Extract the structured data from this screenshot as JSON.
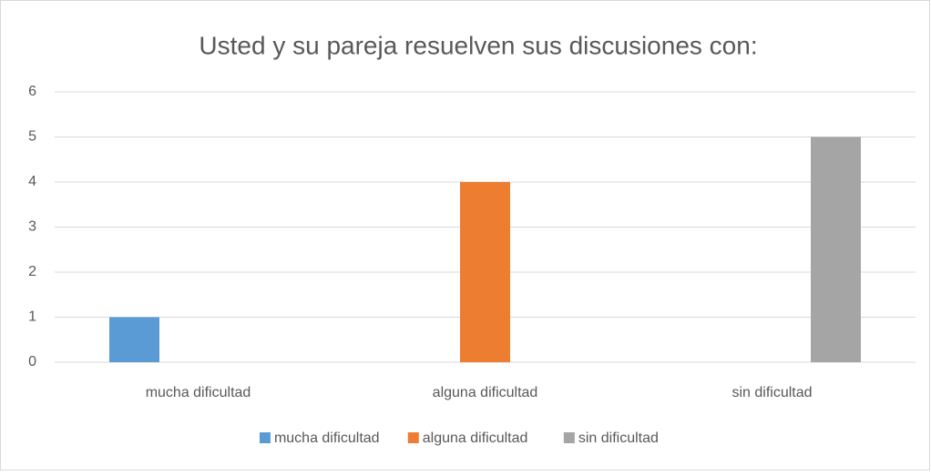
{
  "chart_data": {
    "type": "bar",
    "title": "Usted y su pareja resuelven sus discusiones con:",
    "categories": [
      "mucha dificultad",
      "alguna dificultad",
      "sin dificultad"
    ],
    "series": [
      {
        "name": "mucha dificultad",
        "color": "#5b9bd5",
        "values": [
          1,
          null,
          null
        ]
      },
      {
        "name": "alguna dificultad",
        "color": "#ed7d31",
        "values": [
          null,
          4,
          null
        ]
      },
      {
        "name": "sin dificultad",
        "color": "#a5a5a5",
        "values": [
          null,
          null,
          5
        ]
      }
    ],
    "ylim": [
      0,
      6
    ],
    "yticks": [
      0,
      1,
      2,
      3,
      4,
      5,
      6
    ],
    "grid": true,
    "legend": "bottom"
  }
}
